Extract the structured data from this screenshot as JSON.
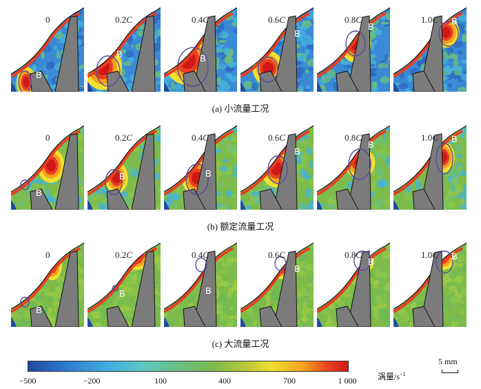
{
  "rows": [
    {
      "caption": "(a) 小流量工况",
      "panels": [
        {
          "num": "0",
          "var": ""
        },
        {
          "num": "0.2",
          "var": "C"
        },
        {
          "num": "0.4",
          "var": "C"
        },
        {
          "num": "0.6",
          "var": "C"
        },
        {
          "num": "0.8",
          "var": "C"
        },
        {
          "num": "1.0",
          "var": "C"
        }
      ]
    },
    {
      "caption": "(b) 额定流量工况",
      "panels": [
        {
          "num": "0",
          "var": ""
        },
        {
          "num": "0.2",
          "var": "C"
        },
        {
          "num": "0.4",
          "var": "C"
        },
        {
          "num": "0.6",
          "var": "C"
        },
        {
          "num": "0.8",
          "var": "C"
        },
        {
          "num": "1.0",
          "var": "C"
        }
      ]
    },
    {
      "caption": "(c) 大流量工况",
      "panels": [
        {
          "num": "0",
          "var": ""
        },
        {
          "num": "0.2",
          "var": "C"
        },
        {
          "num": "0.4",
          "var": "C"
        },
        {
          "num": "0.6",
          "var": "C"
        },
        {
          "num": "0.8",
          "var": "C"
        },
        {
          "num": "1.0",
          "var": "C"
        }
      ]
    }
  ],
  "blade_label": "B",
  "colorbar": {
    "ticks": [
      "−500",
      "−200",
      "100",
      "400",
      "700",
      "1 000"
    ],
    "unit": "涡量/s",
    "unit_exp": "−1"
  },
  "scale_bar": "5 mm",
  "colors": {
    "blade": "#7b7b7b",
    "low": "#1f4aa0",
    "mid": "#7dbb4a",
    "high": "#d01818",
    "circle": "#5a4a9a"
  }
}
